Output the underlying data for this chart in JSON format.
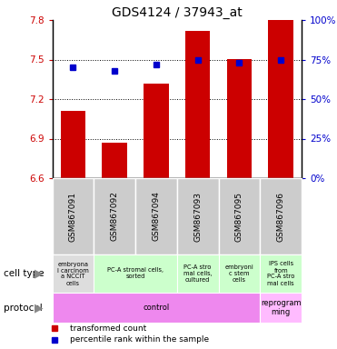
{
  "title": "GDS4124 / 37943_at",
  "samples": [
    "GSM867091",
    "GSM867092",
    "GSM867094",
    "GSM867093",
    "GSM867095",
    "GSM867096"
  ],
  "transformed_counts": [
    7.11,
    6.87,
    7.32,
    7.72,
    7.5,
    7.8
  ],
  "percentile_ranks": [
    70,
    68,
    72,
    75,
    73,
    75
  ],
  "ylim": [
    6.6,
    7.8
  ],
  "yticks": [
    6.6,
    6.9,
    7.2,
    7.5,
    7.8
  ],
  "yticks_right": [
    0,
    25,
    50,
    75,
    100
  ],
  "ylim_right": [
    0,
    100
  ],
  "bar_color": "#cc0000",
  "marker_color": "#0000cc",
  "background_color": "#ffffff",
  "label_bg_color": "#cccccc",
  "cell_type_items": [
    {
      "span": [
        0,
        0
      ],
      "label": "embryona\nl carcinom\na NCCIT\ncells",
      "color": "#dddddd"
    },
    {
      "span": [
        1,
        2
      ],
      "label": "PC-A stromal cells,\nsorted",
      "color": "#ccffcc"
    },
    {
      "span": [
        3,
        3
      ],
      "label": "PC-A stro\nmal cells,\ncultured",
      "color": "#ccffcc"
    },
    {
      "span": [
        4,
        4
      ],
      "label": "embryoni\nc stem\ncells",
      "color": "#ccffcc"
    },
    {
      "span": [
        5,
        5
      ],
      "label": "IPS cells\nfrom\nPC-A stro\nmal cells",
      "color": "#ccffcc"
    }
  ],
  "protocol_items": [
    {
      "span": [
        0,
        4
      ],
      "label": "control",
      "color": "#ee88ee"
    },
    {
      "span": [
        5,
        5
      ],
      "label": "reprogram\nming",
      "color": "#ffbbff"
    }
  ],
  "dotted_yticks": [
    6.9,
    7.2,
    7.5
  ],
  "left_labels": [
    {
      "text": "cell type",
      "arrow": true
    },
    {
      "text": "protocol",
      "arrow": true
    }
  ]
}
